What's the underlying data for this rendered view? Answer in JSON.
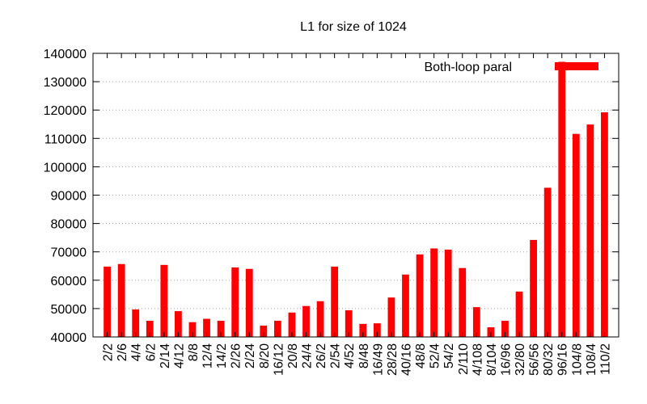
{
  "chart_data": {
    "type": "bar",
    "title": "L1 for size of 1024",
    "xlabel": "",
    "ylabel": "",
    "ylim": [
      40000,
      140000
    ],
    "yticks": [
      40000,
      50000,
      60000,
      70000,
      80000,
      90000,
      100000,
      110000,
      120000,
      130000,
      140000
    ],
    "grid": "horizontal-dotted",
    "legend_position": "top-right",
    "categories": [
      "2/2",
      "2/6",
      "4/4",
      "6/2",
      "2/14",
      "4/12",
      "8/8",
      "12/4",
      "14/2",
      "2/26",
      "2/24",
      "8/20",
      "16/12",
      "20/8",
      "24/4",
      "26/2",
      "2/54",
      "4/52",
      "8/48",
      "16/49",
      "28/28",
      "40/16",
      "48/8",
      "52/4",
      "54/2",
      "2/110",
      "4/108",
      "8/104",
      "16/96",
      "32/80",
      "56/56",
      "80/32",
      "96/16",
      "104/8",
      "108/4",
      "110/2"
    ],
    "series": [
      {
        "name": "Both-loop paral",
        "color": "#ff0000",
        "values": [
          64800,
          65700,
          49700,
          45700,
          65400,
          49100,
          45200,
          46400,
          45700,
          64500,
          64000,
          44000,
          45700,
          48600,
          50900,
          52600,
          64800,
          49400,
          44600,
          44800,
          53900,
          62000,
          69100,
          71200,
          70800,
          64300,
          50500,
          43400,
          45700,
          56000,
          74200,
          92600,
          137000,
          111600,
          114900,
          119200
        ]
      }
    ]
  }
}
